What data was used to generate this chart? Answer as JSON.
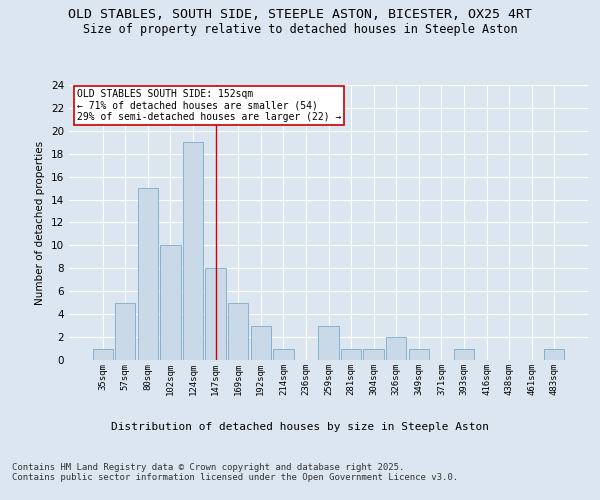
{
  "title1": "OLD STABLES, SOUTH SIDE, STEEPLE ASTON, BICESTER, OX25 4RT",
  "title2": "Size of property relative to detached houses in Steeple Aston",
  "xlabel": "Distribution of detached houses by size in Steeple Aston",
  "ylabel": "Number of detached properties",
  "categories": [
    "35sqm",
    "57sqm",
    "80sqm",
    "102sqm",
    "124sqm",
    "147sqm",
    "169sqm",
    "192sqm",
    "214sqm",
    "236sqm",
    "259sqm",
    "281sqm",
    "304sqm",
    "326sqm",
    "349sqm",
    "371sqm",
    "393sqm",
    "416sqm",
    "438sqm",
    "461sqm",
    "483sqm"
  ],
  "values": [
    1,
    5,
    15,
    10,
    19,
    8,
    5,
    3,
    1,
    0,
    3,
    1,
    1,
    2,
    1,
    0,
    1,
    0,
    0,
    0,
    1
  ],
  "bar_color": "#c9d9e8",
  "bar_edge_color": "#7aaac8",
  "highlight_index": 5,
  "highlight_color": "#cc0000",
  "ylim": [
    0,
    24
  ],
  "yticks": [
    0,
    2,
    4,
    6,
    8,
    10,
    12,
    14,
    16,
    18,
    20,
    22,
    24
  ],
  "annotation_title": "OLD STABLES SOUTH SIDE: 152sqm",
  "annotation_line1": "← 71% of detached houses are smaller (54)",
  "annotation_line2": "29% of semi-detached houses are larger (22) →",
  "annotation_box_color": "#ffffff",
  "annotation_box_edge": "#cc0000",
  "footer1": "Contains HM Land Registry data © Crown copyright and database right 2025.",
  "footer2": "Contains public sector information licensed under the Open Government Licence v3.0.",
  "bg_color": "#dce6f0",
  "plot_bg_color": "#dce6f0",
  "grid_color": "#ffffff",
  "title1_fontsize": 9.5,
  "title2_fontsize": 8.5,
  "tick_fontsize": 6.5,
  "ylabel_fontsize": 7.5,
  "xlabel_fontsize": 8,
  "footer_fontsize": 6.5,
  "annotation_fontsize": 7
}
